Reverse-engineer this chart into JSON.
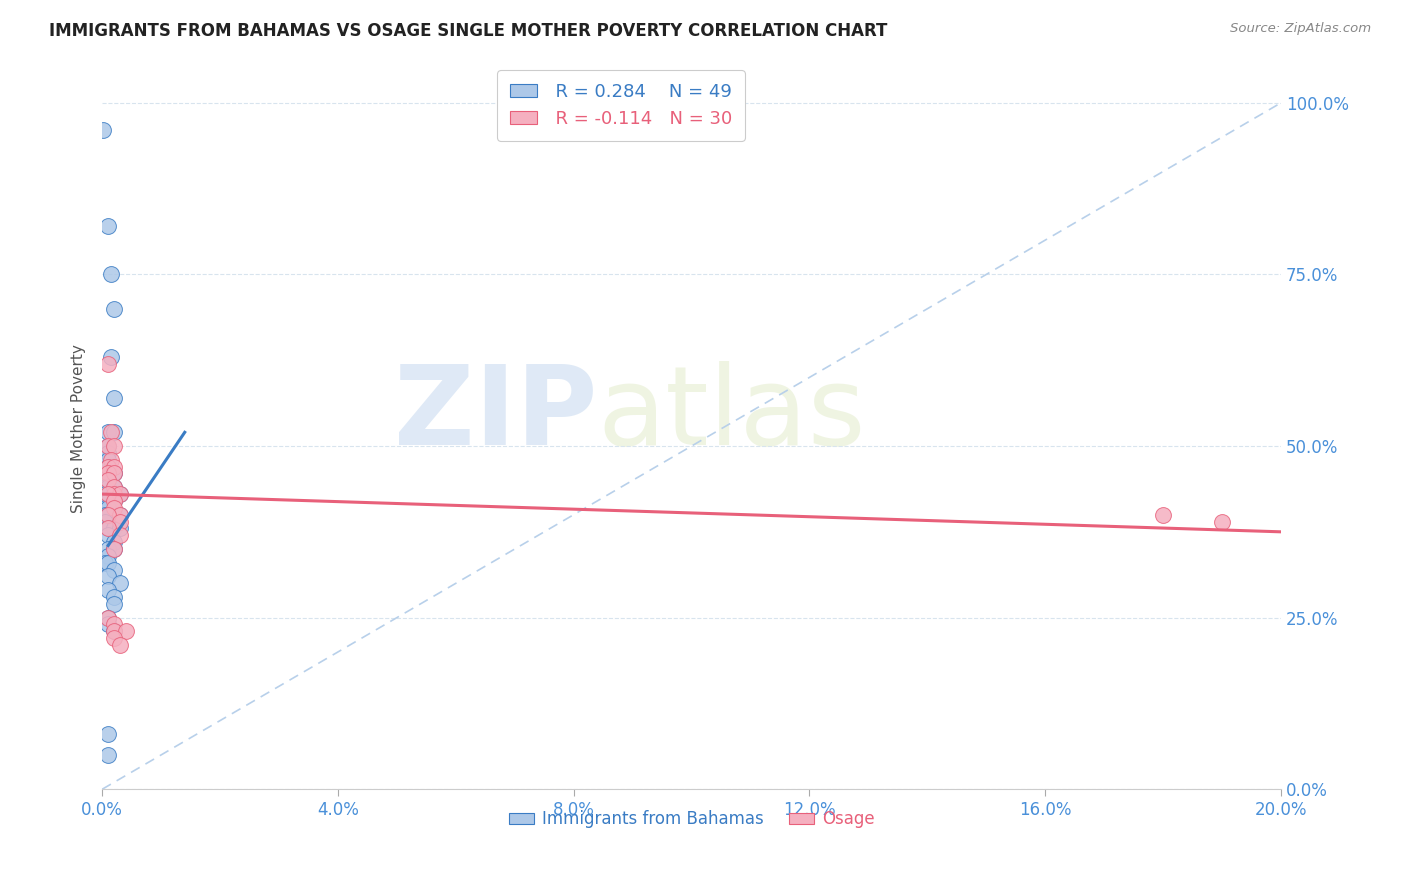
{
  "title": "IMMIGRANTS FROM BAHAMAS VS OSAGE SINGLE MOTHER POVERTY CORRELATION CHART",
  "source": "Source: ZipAtlas.com",
  "xlabel_ticks": [
    "0.0%",
    "4.0%",
    "8.0%",
    "12.0%",
    "16.0%",
    "20.0%"
  ],
  "ylabel_ticks": [
    "0.0%",
    "25.0%",
    "50.0%",
    "75.0%",
    "100.0%"
  ],
  "xlim": [
    0.0,
    0.2
  ],
  "ylim": [
    0.0,
    1.05
  ],
  "legend": {
    "bahamas_label": "Immigrants from Bahamas",
    "osage_label": "Osage",
    "bahamas_R": "R = 0.284",
    "bahamas_N": "N = 49",
    "osage_R": "R = -0.114",
    "osage_N": "N = 30"
  },
  "bahamas_color": "#adc8e8",
  "osage_color": "#f5b0c0",
  "trendline_bahamas_color": "#3a7cc4",
  "trendline_osage_color": "#e8607a",
  "trendline_dash_color": "#b8d0ea",
  "watermark_zip": "ZIP",
  "watermark_atlas": "atlas",
  "bahamas_trendline": [
    0.001,
    0.355,
    0.014,
    0.52
  ],
  "osage_trendline": [
    0.0,
    0.43,
    0.2,
    0.375
  ],
  "bahamas_points": [
    [
      0.0001,
      0.96
    ],
    [
      0.001,
      0.82
    ],
    [
      0.0015,
      0.75
    ],
    [
      0.002,
      0.7
    ],
    [
      0.0015,
      0.63
    ],
    [
      0.002,
      0.57
    ],
    [
      0.001,
      0.52
    ],
    [
      0.002,
      0.52
    ],
    [
      0.001,
      0.5
    ],
    [
      0.001,
      0.49
    ],
    [
      0.001,
      0.48
    ],
    [
      0.001,
      0.47
    ],
    [
      0.002,
      0.46
    ],
    [
      0.001,
      0.45
    ],
    [
      0.0005,
      0.44
    ],
    [
      0.001,
      0.44
    ],
    [
      0.002,
      0.44
    ],
    [
      0.003,
      0.43
    ],
    [
      0.0005,
      0.43
    ],
    [
      0.001,
      0.42
    ],
    [
      0.002,
      0.42
    ],
    [
      0.0005,
      0.41
    ],
    [
      0.001,
      0.41
    ],
    [
      0.002,
      0.4
    ],
    [
      0.0005,
      0.4
    ],
    [
      0.001,
      0.4
    ],
    [
      0.003,
      0.4
    ],
    [
      0.0005,
      0.39
    ],
    [
      0.001,
      0.38
    ],
    [
      0.002,
      0.38
    ],
    [
      0.003,
      0.38
    ],
    [
      0.001,
      0.37
    ],
    [
      0.002,
      0.36
    ],
    [
      0.001,
      0.35
    ],
    [
      0.002,
      0.35
    ],
    [
      0.001,
      0.34
    ],
    [
      0.0005,
      0.33
    ],
    [
      0.001,
      0.33
    ],
    [
      0.002,
      0.32
    ],
    [
      0.001,
      0.31
    ],
    [
      0.003,
      0.3
    ],
    [
      0.001,
      0.29
    ],
    [
      0.002,
      0.28
    ],
    [
      0.002,
      0.27
    ],
    [
      0.001,
      0.25
    ],
    [
      0.001,
      0.24
    ],
    [
      0.002,
      0.23
    ],
    [
      0.001,
      0.08
    ],
    [
      0.001,
      0.05
    ]
  ],
  "osage_points": [
    [
      0.001,
      0.62
    ],
    [
      0.0015,
      0.52
    ],
    [
      0.001,
      0.5
    ],
    [
      0.002,
      0.5
    ],
    [
      0.0015,
      0.48
    ],
    [
      0.001,
      0.47
    ],
    [
      0.002,
      0.47
    ],
    [
      0.001,
      0.46
    ],
    [
      0.002,
      0.46
    ],
    [
      0.001,
      0.45
    ],
    [
      0.002,
      0.44
    ],
    [
      0.002,
      0.43
    ],
    [
      0.003,
      0.43
    ],
    [
      0.001,
      0.43
    ],
    [
      0.002,
      0.42
    ],
    [
      0.002,
      0.41
    ],
    [
      0.003,
      0.4
    ],
    [
      0.001,
      0.4
    ],
    [
      0.003,
      0.39
    ],
    [
      0.001,
      0.38
    ],
    [
      0.003,
      0.37
    ],
    [
      0.002,
      0.35
    ],
    [
      0.001,
      0.25
    ],
    [
      0.002,
      0.24
    ],
    [
      0.002,
      0.23
    ],
    [
      0.004,
      0.23
    ],
    [
      0.002,
      0.22
    ],
    [
      0.003,
      0.21
    ],
    [
      0.18,
      0.4
    ],
    [
      0.19,
      0.39
    ]
  ]
}
